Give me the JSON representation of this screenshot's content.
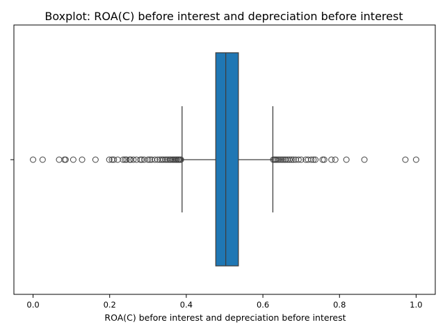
{
  "chart_data": {
    "type": "boxplot",
    "title": "Boxplot:  ROA(C) before interest and depreciation before interest",
    "xlabel": " ROA(C) before interest and depreciation before interest",
    "ylabel": "",
    "xlim": [
      -0.05,
      1.05
    ],
    "xticks": [
      0.0,
      0.2,
      0.4,
      0.6,
      0.8,
      1.0
    ],
    "xtick_labels": [
      "0.0",
      "0.2",
      "0.4",
      "0.6",
      "0.8",
      "1.0"
    ],
    "orientation": "horizontal",
    "color": "#1f77b4",
    "box": {
      "q1": 0.477,
      "median": 0.503,
      "q3": 0.536,
      "whisker_low": 0.389,
      "whisker_high": 0.626
    },
    "outliers": [
      0.0,
      0.025,
      0.068,
      0.082,
      0.085,
      0.105,
      0.128,
      0.163,
      0.199,
      0.206,
      0.211,
      0.221,
      0.235,
      0.24,
      0.244,
      0.252,
      0.255,
      0.262,
      0.27,
      0.28,
      0.284,
      0.29,
      0.3,
      0.305,
      0.31,
      0.318,
      0.325,
      0.331,
      0.336,
      0.34,
      0.345,
      0.349,
      0.353,
      0.357,
      0.36,
      0.364,
      0.367,
      0.37,
      0.373,
      0.376,
      0.379,
      0.381,
      0.384,
      0.386,
      0.627,
      0.63,
      0.633,
      0.636,
      0.64,
      0.644,
      0.648,
      0.652,
      0.656,
      0.66,
      0.665,
      0.67,
      0.675,
      0.68,
      0.686,
      0.693,
      0.7,
      0.712,
      0.718,
      0.726,
      0.732,
      0.737,
      0.756,
      0.76,
      0.779,
      0.789,
      0.818,
      0.865,
      0.972,
      1.0
    ],
    "grid": false,
    "legend": false
  }
}
